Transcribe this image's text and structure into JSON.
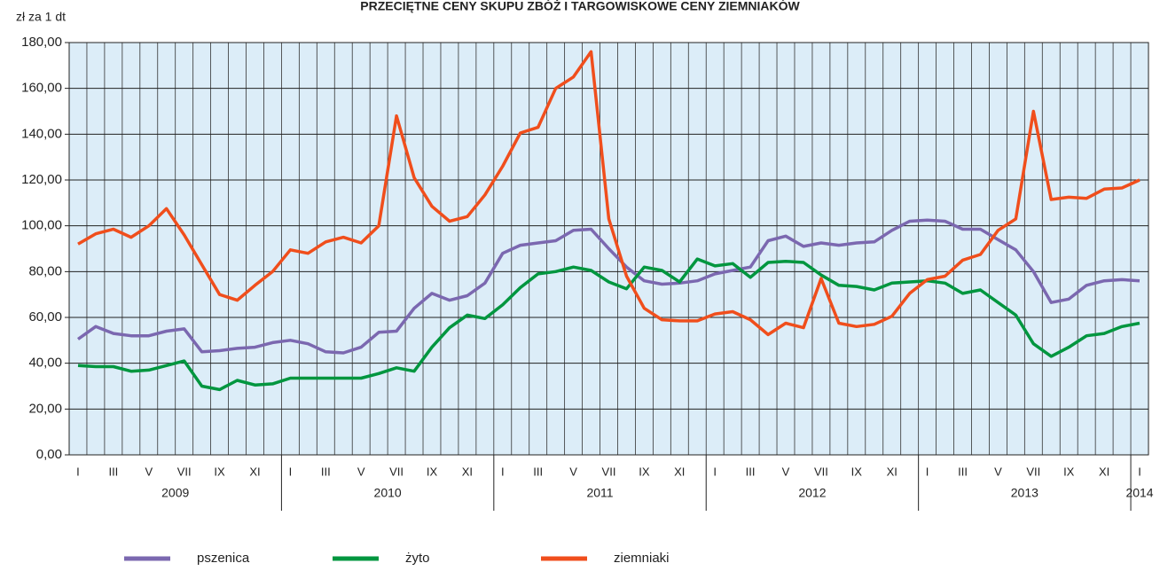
{
  "chart_data": {
    "type": "line",
    "title": "PRZECIĘTNE CENY SKUPU ZBÓŻ I TARGOWISKOWE CENY ZIEMNIAKÓW",
    "y_axis_label": "zł za 1 dt",
    "categories": [
      "I",
      null,
      "III",
      null,
      "V",
      null,
      "VII",
      null,
      "IX",
      null,
      "XI",
      null,
      "I",
      null,
      "III",
      null,
      "V",
      null,
      "VII",
      null,
      "IX",
      null,
      "XI",
      null,
      "I",
      null,
      "III",
      null,
      "V",
      null,
      "VII",
      null,
      "IX",
      null,
      "XI",
      null,
      "I",
      null,
      "III",
      null,
      "V",
      null,
      "VII",
      null,
      "IX",
      null,
      "XI",
      null,
      "I",
      null,
      "III",
      null,
      "V",
      null,
      "VII",
      null,
      "IX",
      null,
      "XI",
      null,
      "I"
    ],
    "years": [
      "2009",
      "2010",
      "2011",
      "2012",
      "2013",
      "2014"
    ],
    "ylim": [
      0,
      180
    ],
    "yticks": [
      {
        "value": 0,
        "label": "0,00"
      },
      {
        "value": 20,
        "label": "20,00"
      },
      {
        "value": 40,
        "label": "40,00"
      },
      {
        "value": 60,
        "label": "60,00"
      },
      {
        "value": 80,
        "label": "80,00"
      },
      {
        "value": 100,
        "label": "100,00"
      },
      {
        "value": 120,
        "label": "120,00"
      },
      {
        "value": 140,
        "label": "140,00"
      },
      {
        "value": 160,
        "label": "160,00"
      },
      {
        "value": 180,
        "label": "180,00"
      }
    ],
    "grid": true,
    "series": [
      {
        "name": "pszenica",
        "color": "#7b68b0",
        "values": [
          50.5,
          56,
          53,
          52,
          52,
          54,
          55,
          45,
          45.5,
          46.5,
          47,
          49,
          50,
          48.5,
          45,
          44.5,
          47,
          53.5,
          54,
          64,
          70.5,
          67.5,
          69.5,
          75,
          88,
          91.5,
          92.5,
          93.5,
          98,
          98.5,
          90,
          82,
          76,
          74.5,
          75,
          76,
          79,
          80.5,
          82,
          93.5,
          95.5,
          91,
          92.5,
          91.5,
          92.5,
          93,
          98,
          102,
          102.5,
          102,
          98.5,
          98.5,
          94,
          89.5,
          80,
          66.5,
          68,
          74,
          76,
          76.5,
          76
        ]
      },
      {
        "name": "żyto",
        "color": "#00963f",
        "values": [
          39,
          38.5,
          38.5,
          36.5,
          37,
          39,
          41,
          30,
          28.5,
          32.5,
          30.5,
          31,
          33.5,
          33.5,
          33.5,
          33.5,
          33.5,
          35.5,
          38,
          36.5,
          47,
          55.5,
          61,
          59.5,
          65.5,
          73,
          79,
          80,
          82,
          80.5,
          75.5,
          72.5,
          82,
          80.5,
          75.5,
          85.5,
          82.5,
          83.5,
          77.5,
          84,
          84.5,
          84,
          78.5,
          74,
          73.5,
          72,
          75,
          75.5,
          76,
          75,
          70.5,
          72,
          66.5,
          61,
          48.5,
          43,
          47,
          52,
          53,
          56,
          57.5
        ]
      },
      {
        "name": "ziemniaki",
        "color": "#f04e1c",
        "values": [
          92,
          96.5,
          98.5,
          95,
          100,
          107.5,
          96,
          83,
          70,
          67.5,
          74,
          80,
          89.5,
          88,
          93,
          95,
          92.5,
          100,
          148,
          121,
          108.5,
          102,
          104,
          113.5,
          126,
          140.5,
          143,
          160,
          165,
          176,
          103,
          78,
          64,
          59,
          58.5,
          58.5,
          61.5,
          62.5,
          59,
          52.5,
          57.5,
          55.5,
          77,
          57.5,
          56,
          57,
          60.5,
          70.5,
          76.5,
          78,
          85,
          87.5,
          98,
          103,
          150,
          111.5,
          112.5,
          112,
          116,
          116.5,
          120
        ]
      }
    ]
  }
}
